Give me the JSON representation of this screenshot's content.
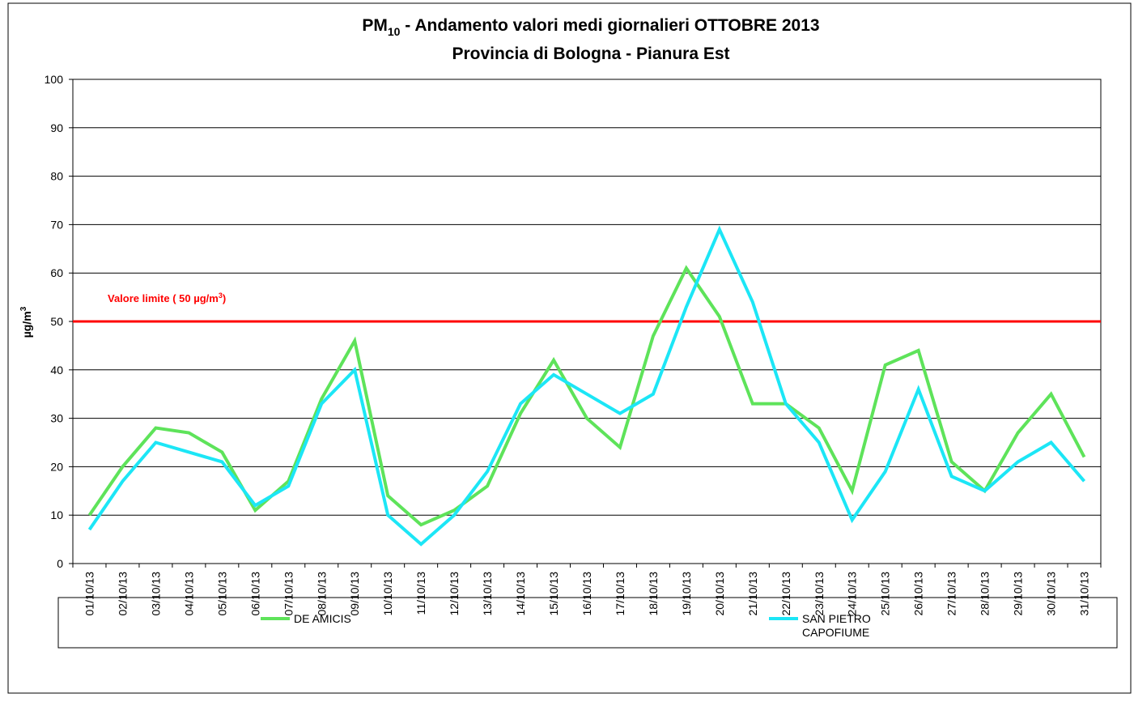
{
  "chart_data": {
    "type": "line",
    "title": {
      "main": "PM",
      "sub": "10",
      "rest": " - Andamento valori medi giornalieri OTTOBRE 2013"
    },
    "subtitle": "Provincia di Bologna - Pianura Est",
    "y_label": {
      "main": "µg/m",
      "sup": "3"
    },
    "categories": [
      "01/10/13",
      "02/10/13",
      "03/10/13",
      "04/10/13",
      "05/10/13",
      "06/10/13",
      "07/10/13",
      "08/10/13",
      "09/10/13",
      "10/10/13",
      "11/10/13",
      "12/10/13",
      "13/10/13",
      "14/10/13",
      "15/10/13",
      "16/10/13",
      "17/10/13",
      "18/10/13",
      "19/10/13",
      "20/10/13",
      "21/10/13",
      "22/10/13",
      "23/10/13",
      "24/10/13",
      "25/10/13",
      "26/10/13",
      "27/10/13",
      "28/10/13",
      "29/10/13",
      "30/10/13",
      "31/10/13"
    ],
    "series": [
      {
        "name": "DE AMICIS",
        "color": "#5ee35a",
        "values": [
          10,
          20,
          28,
          27,
          23,
          11,
          17,
          34,
          46,
          14,
          8,
          11,
          16,
          31,
          42,
          30,
          24,
          47,
          61,
          51,
          33,
          33,
          28,
          15,
          41,
          44,
          21,
          15,
          27,
          35,
          22
        ]
      },
      {
        "name": "SAN PIETRO CAPOFIUME",
        "color": "#1ce6f6",
        "values": [
          7,
          17,
          25,
          23,
          21,
          12,
          16,
          33,
          40,
          10,
          4,
          10,
          19,
          33,
          39,
          35,
          31,
          35,
          53,
          69,
          54,
          33,
          25,
          9,
          19,
          36,
          18,
          15,
          21,
          25,
          17
        ]
      }
    ],
    "limit": {
      "value": 50,
      "color": "#ff0000",
      "label": {
        "main": "Valore limite  ( 50 µg/m",
        "sup": "3",
        "end": ")"
      }
    },
    "ylim": [
      0,
      100
    ],
    "yticks": [
      0,
      10,
      20,
      30,
      40,
      50,
      60,
      70,
      80,
      90,
      100
    ],
    "grid": true
  }
}
